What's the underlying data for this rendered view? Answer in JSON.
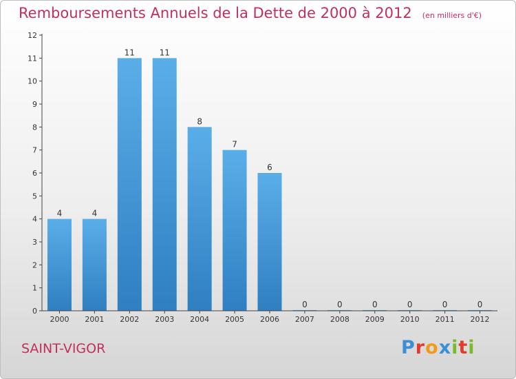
{
  "header": {
    "title": "Remboursements Annuels de la Dette de 2000 à 2012",
    "subtitle": "(en milliers d'€)"
  },
  "footer": {
    "commune": "SAINT-VIGOR",
    "brand": "Proxiti"
  },
  "colors": {
    "title": "#c0305a",
    "bar_light": "#5aaee8",
    "bar_dark": "#2f7fc1",
    "brand_letters": [
      "#3b8fd6",
      "#e33b2a",
      "#f29a1d",
      "#3b8fd6",
      "#7ab928",
      "#e33b2a",
      "#7ab928"
    ]
  },
  "chart_data": {
    "type": "bar",
    "title": "Remboursements Annuels de la Dette de 2000 à 2012",
    "subtitle": "(en milliers d'€)",
    "categories": [
      "2000",
      "2001",
      "2002",
      "2003",
      "2004",
      "2005",
      "2006",
      "2007",
      "2008",
      "2009",
      "2010",
      "2011",
      "2012"
    ],
    "values": [
      4,
      4,
      11,
      11,
      8,
      7,
      6,
      0,
      0,
      0,
      0,
      0,
      0
    ],
    "value_labels": [
      "4",
      "4",
      "11",
      "11",
      "8",
      "7",
      "6",
      "0",
      "0",
      "0",
      "0",
      "0",
      "0"
    ],
    "y_ticks": [
      "0",
      "1",
      "2",
      "3",
      "4",
      "5",
      "6",
      "7",
      "8",
      "9",
      "10",
      "11",
      "12"
    ],
    "ylim": [
      0,
      12
    ],
    "xlabel": "",
    "ylabel": "",
    "grid": false,
    "legend": "none"
  }
}
